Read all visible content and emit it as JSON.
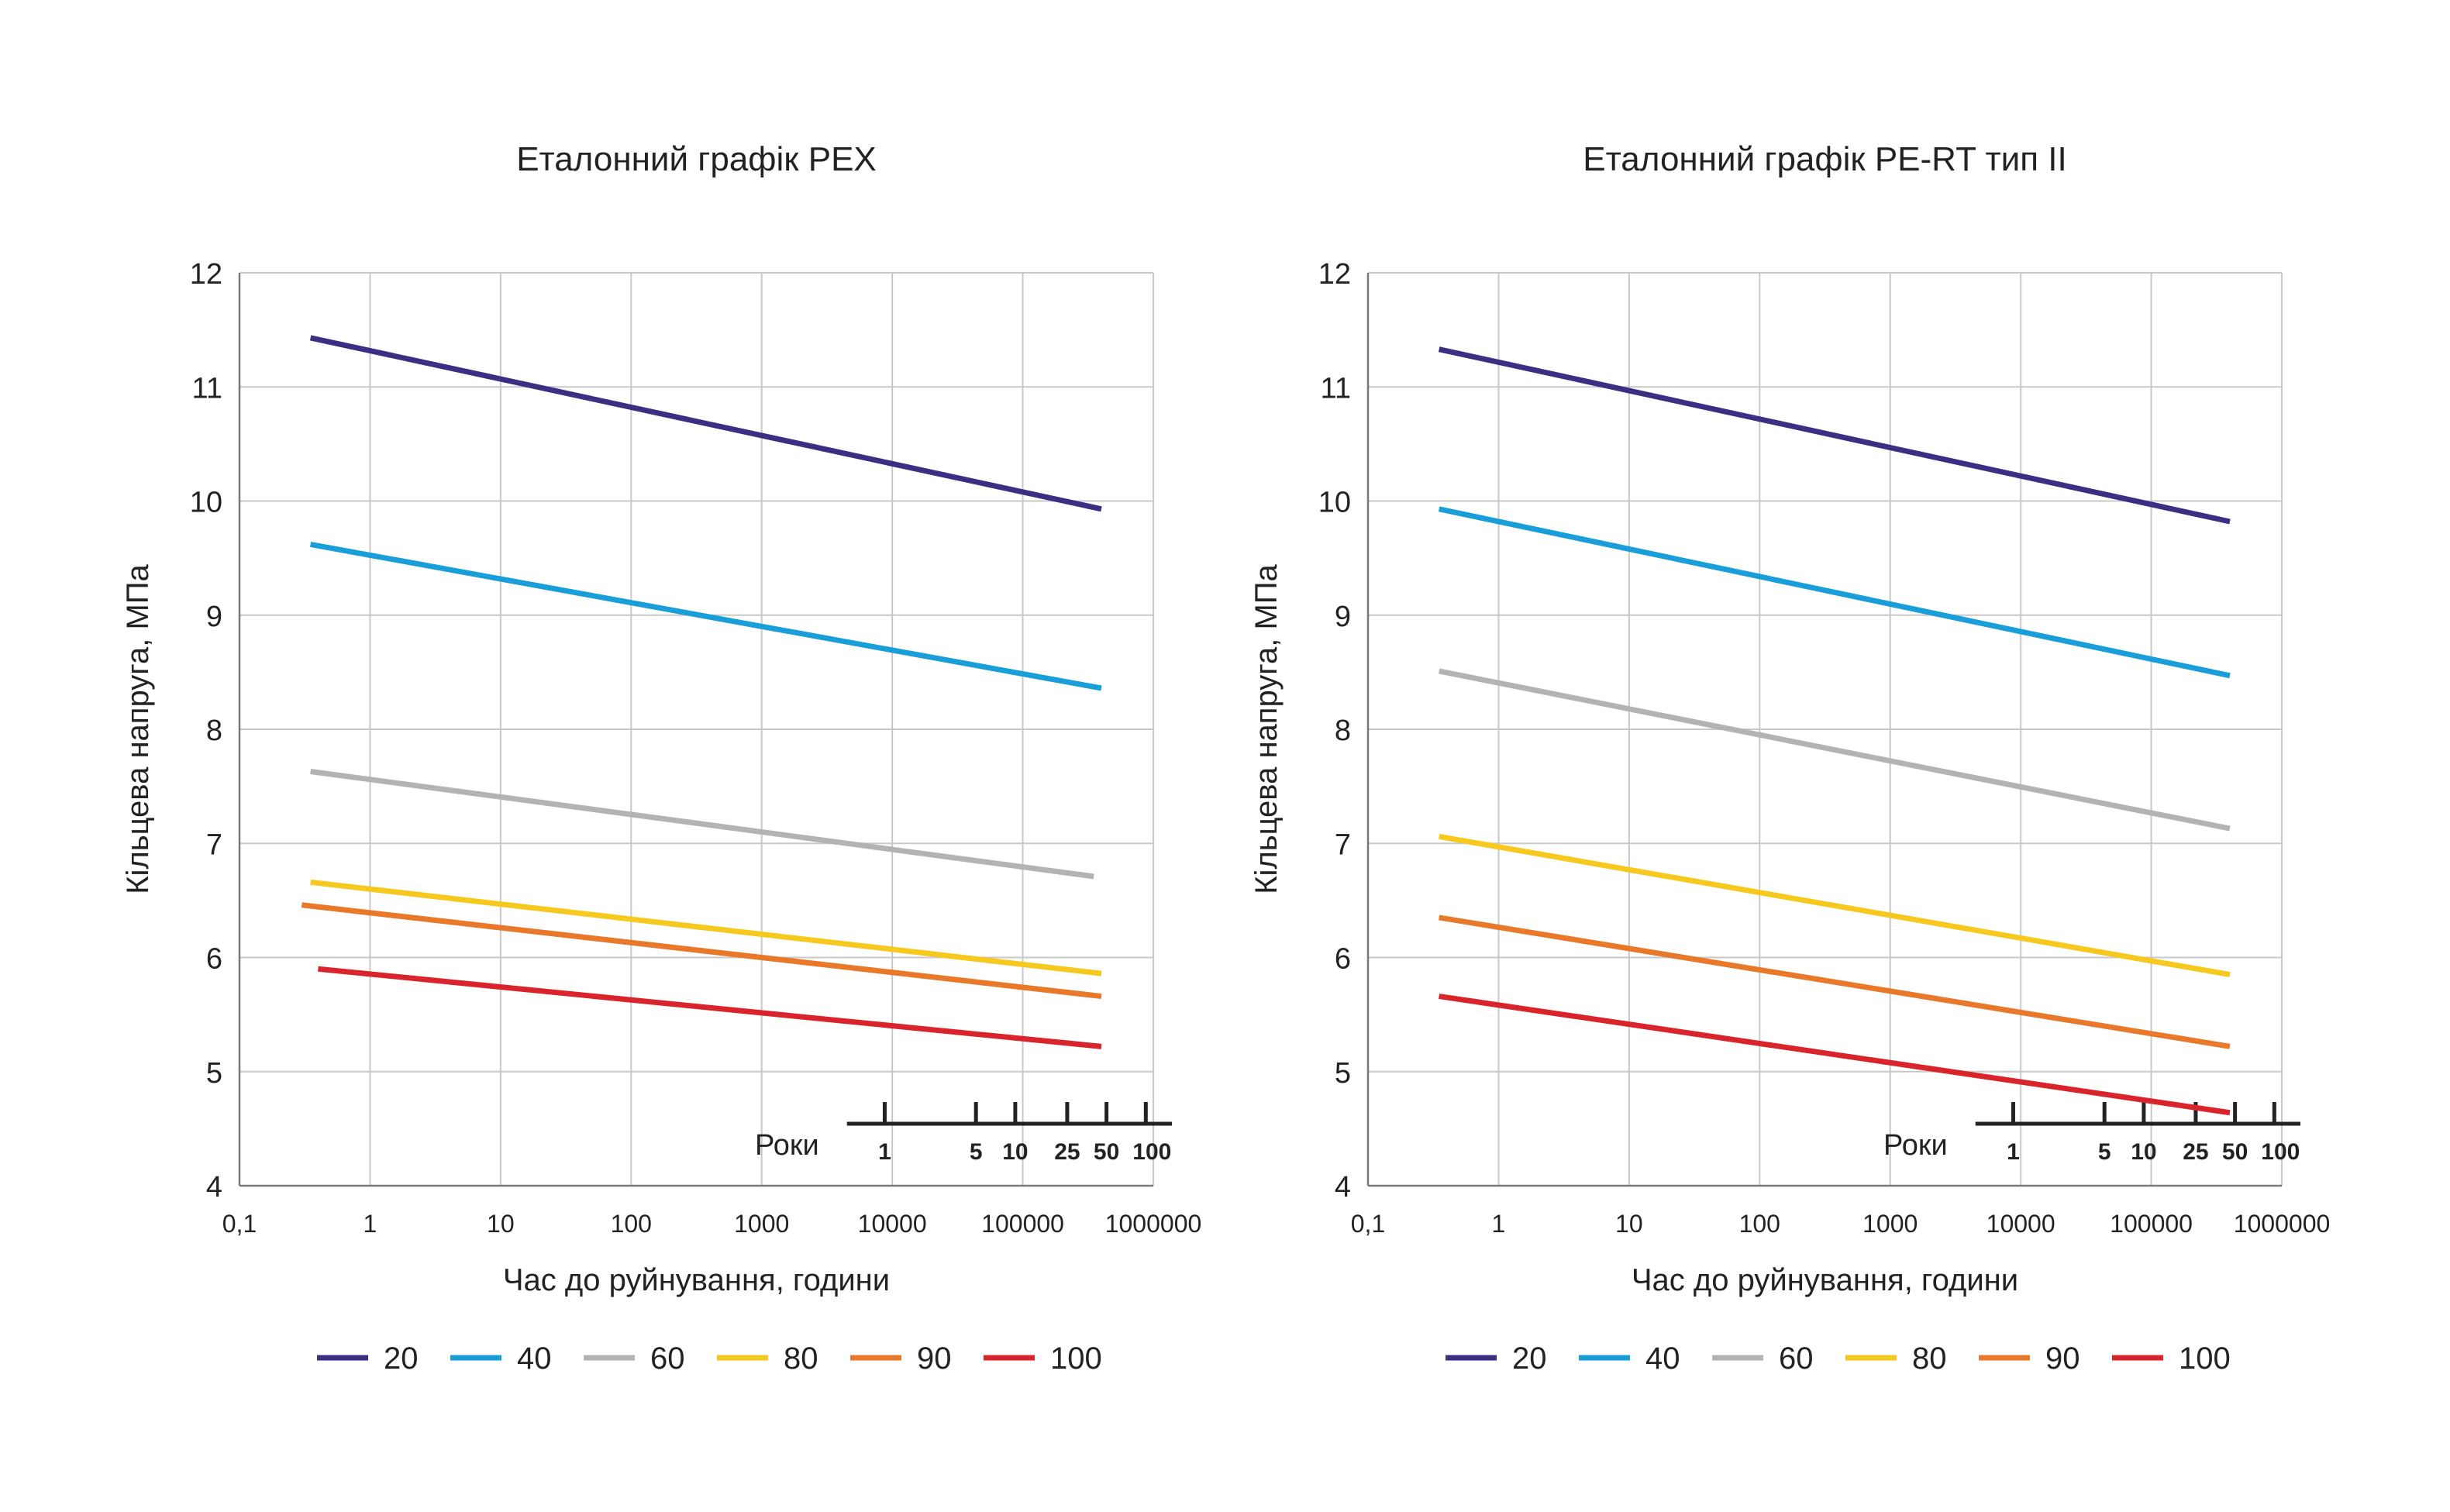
{
  "chart_data": [
    {
      "type": "line",
      "title": "Еталонний графік PEX",
      "xlabel": "Час до руйнування, години",
      "ylabel": "Кільцева напруга, МПа",
      "x_scale": "log",
      "xlim": [
        0.1,
        1000000
      ],
      "ylim": [
        4,
        12
      ],
      "x_tick_labels": [
        "0,1",
        "1",
        "10",
        "100",
        "1000",
        "10000",
        "100000",
        "1000000"
      ],
      "y_tick_labels": [
        "4",
        "5",
        "6",
        "7",
        "8",
        "9",
        "10",
        "11",
        "12"
      ],
      "grid": true,
      "years_axis": {
        "label": "Роки",
        "ticks": [
          "1",
          "5",
          "10",
          "25",
          "50",
          "100"
        ]
      },
      "legend_position": "bottom",
      "series": [
        {
          "name": "20",
          "color": "#3a2f83",
          "x": [
            0.35,
            400000
          ],
          "y": [
            11.43,
            9.93
          ]
        },
        {
          "name": "40",
          "color": "#1a9ed9",
          "x": [
            0.35,
            400000
          ],
          "y": [
            9.62,
            8.36
          ]
        },
        {
          "name": "60",
          "color": "#b3b3b3",
          "x": [
            0.35,
            350000
          ],
          "y": [
            7.63,
            6.71
          ]
        },
        {
          "name": "80",
          "color": "#f7c81e",
          "x": [
            0.35,
            400000
          ],
          "y": [
            6.66,
            5.86
          ]
        },
        {
          "name": "90",
          "color": "#e8782a",
          "x": [
            0.3,
            400000
          ],
          "y": [
            6.46,
            5.66
          ]
        },
        {
          "name": "100",
          "color": "#d9242b",
          "x": [
            0.4,
            400000
          ],
          "y": [
            5.9,
            5.22
          ]
        }
      ]
    },
    {
      "type": "line",
      "title": "Еталонний графік PE-RT тип II",
      "xlabel": "Час до руйнування, години",
      "ylabel": "Кільцева напруга, МПа",
      "x_scale": "log",
      "xlim": [
        0.1,
        1000000
      ],
      "ylim": [
        4,
        12
      ],
      "x_tick_labels": [
        "0,1",
        "1",
        "10",
        "100",
        "1000",
        "10000",
        "100000",
        "1000000"
      ],
      "y_tick_labels": [
        "4",
        "5",
        "6",
        "7",
        "8",
        "9",
        "10",
        "11",
        "12"
      ],
      "grid": true,
      "years_axis": {
        "label": "Роки",
        "ticks": [
          "1",
          "5",
          "10",
          "25",
          "50",
          "100"
        ]
      },
      "legend_position": "bottom",
      "series": [
        {
          "name": "20",
          "color": "#3a2f83",
          "x": [
            0.35,
            400000
          ],
          "y": [
            11.33,
            9.82
          ]
        },
        {
          "name": "40",
          "color": "#1a9ed9",
          "x": [
            0.35,
            400000
          ],
          "y": [
            9.93,
            8.47
          ]
        },
        {
          "name": "60",
          "color": "#b3b3b3",
          "x": [
            0.35,
            400000
          ],
          "y": [
            8.51,
            7.13
          ]
        },
        {
          "name": "80",
          "color": "#f7c81e",
          "x": [
            0.35,
            400000
          ],
          "y": [
            7.06,
            5.85
          ]
        },
        {
          "name": "90",
          "color": "#e8782a",
          "x": [
            0.35,
            400000
          ],
          "y": [
            6.35,
            5.22
          ]
        },
        {
          "name": "100",
          "color": "#d9242b",
          "x": [
            0.35,
            400000
          ],
          "y": [
            5.66,
            4.64
          ]
        }
      ]
    }
  ]
}
